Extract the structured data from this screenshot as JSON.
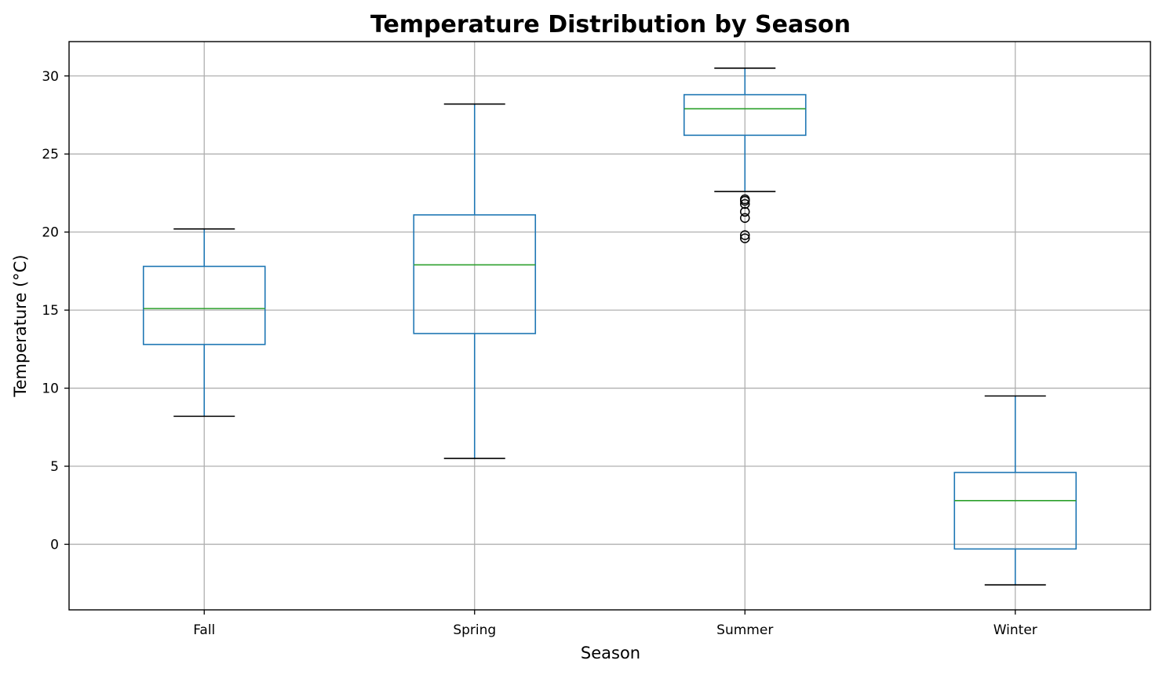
{
  "chart_data": {
    "type": "box",
    "title": "Temperature Distribution by Season",
    "xlabel": "Season",
    "ylabel": "Temperature (°C)",
    "ylim": [
      -4.2,
      32.2
    ],
    "yticks": [
      0,
      5,
      10,
      15,
      20,
      25,
      30
    ],
    "grid": true,
    "categories": [
      "Fall",
      "Spring",
      "Summer",
      "Winter"
    ],
    "boxes": [
      {
        "name": "Fall",
        "whisker_low": 8.2,
        "q1": 12.8,
        "median": 15.1,
        "q3": 17.8,
        "whisker_high": 20.2,
        "outliers": []
      },
      {
        "name": "Spring",
        "whisker_low": 5.5,
        "q1": 13.5,
        "median": 17.9,
        "q3": 21.1,
        "whisker_high": 28.2,
        "outliers": []
      },
      {
        "name": "Summer",
        "whisker_low": 22.6,
        "q1": 26.2,
        "median": 27.9,
        "q3": 28.8,
        "whisker_high": 30.5,
        "outliers": [
          22.1,
          22.0,
          21.8,
          21.3,
          20.9,
          19.8,
          19.6
        ]
      },
      {
        "name": "Winter",
        "whisker_low": -2.6,
        "q1": -0.3,
        "median": 2.8,
        "q3": 4.6,
        "whisker_high": 9.5,
        "outliers": []
      }
    ],
    "colors": {
      "box": "#1f77b4",
      "median": "#2ca02c",
      "cap": "#000000",
      "grid": "#b0b0b0",
      "outlier": "#000000"
    }
  }
}
